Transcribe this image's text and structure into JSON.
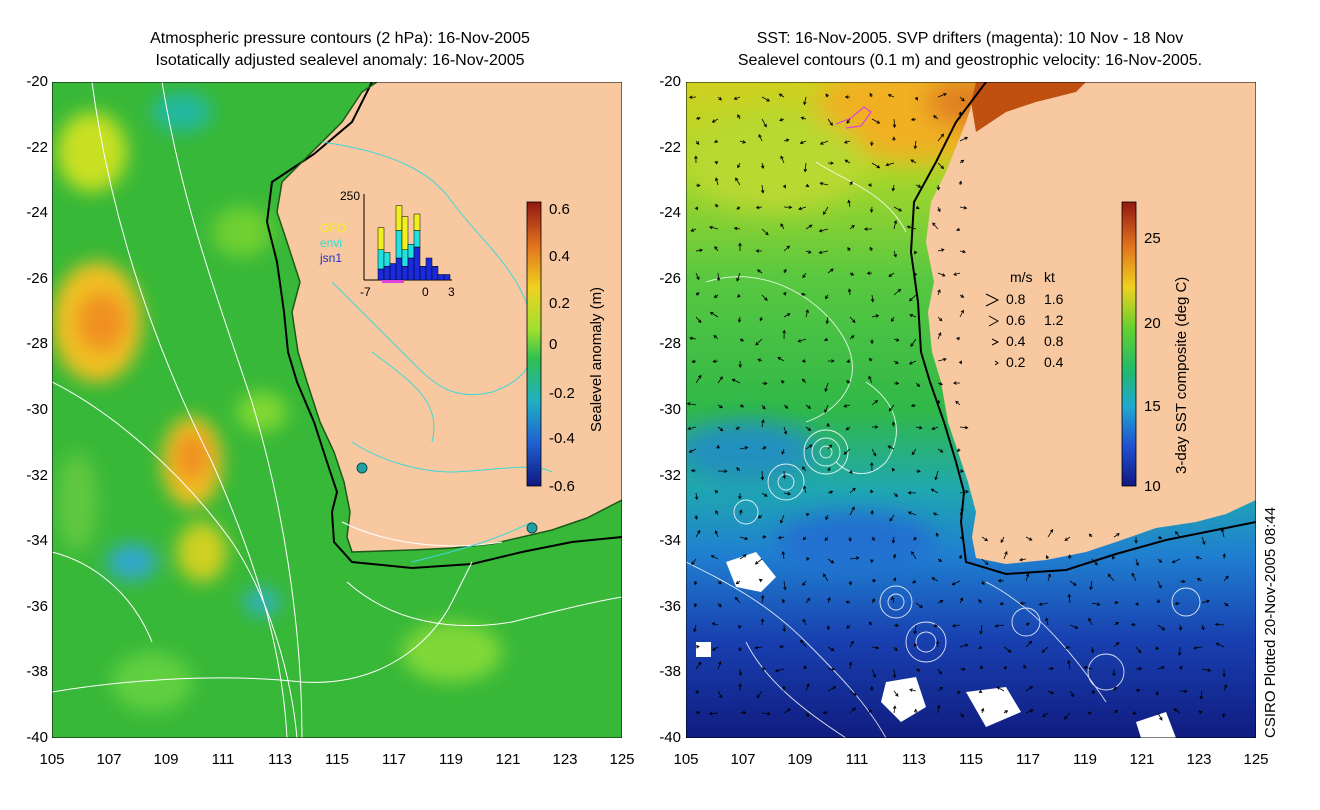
{
  "left_panel": {
    "title_line1": "Atmospheric pressure contours (2 hPa): 16-Nov-2005",
    "title_line2": "Isotatically adjusted sealevel anomaly: 16-Nov-2005",
    "colorbar": {
      "label": "Sealevel anomaly (m)",
      "ticks": [
        "0.6",
        "0.4",
        "0.2",
        "0",
        "-0.2",
        "-0.4",
        "-0.6"
      ]
    },
    "inset_histogram": {
      "ymax_label": "250",
      "legend": [
        "GFO",
        "envi",
        "jsn1"
      ],
      "x_ticks": [
        "-7",
        "0",
        "3"
      ],
      "bars_gfo": [
        0,
        0,
        40,
        0,
        0,
        45,
        60,
        0,
        30,
        0,
        0,
        0,
        0,
        0
      ],
      "bars_envi": [
        0,
        0,
        35,
        25,
        0,
        50,
        30,
        25,
        30,
        0,
        0,
        0,
        0,
        0
      ],
      "bars_jsn1": [
        0,
        0,
        20,
        25,
        30,
        40,
        25,
        40,
        60,
        25,
        40,
        25,
        10,
        10
      ]
    }
  },
  "right_panel": {
    "title_line1": "SST: 16-Nov-2005. SVP drifters (magenta): 10 Nov - 18 Nov",
    "title_line2": "Sealevel contours (0.1 m) and geostrophic velocity: 16-Nov-2005.",
    "colorbar": {
      "label": "3-day SST composite (deg C)",
      "ticks": [
        "25",
        "20",
        "15",
        "10"
      ]
    },
    "velocity_legend": {
      "header_ms": "m/s",
      "header_kt": "kt",
      "rows": [
        {
          "ms": "0.8",
          "kt": "1.6"
        },
        {
          "ms": "0.6",
          "kt": "1.2"
        },
        {
          "ms": "0.4",
          "kt": "0.8"
        },
        {
          "ms": "0.2",
          "kt": "0.4"
        }
      ]
    }
  },
  "axes": {
    "y_ticks": [
      "-20",
      "-22",
      "-24",
      "-26",
      "-28",
      "-30",
      "-32",
      "-34",
      "-36",
      "-38",
      "-40"
    ],
    "x_ticks": [
      "105",
      "107",
      "109",
      "111",
      "113",
      "115",
      "117",
      "119",
      "121",
      "123",
      "125"
    ]
  },
  "credit": "CSIRO Plotted 20-Nov-2005 08:44",
  "colors": {
    "land": "#f8c8a0",
    "sea_green": "#40c040",
    "contour_white": "#ffffff",
    "contour_cyan": "#40d8d8",
    "drifter_magenta": "#e040e0"
  }
}
